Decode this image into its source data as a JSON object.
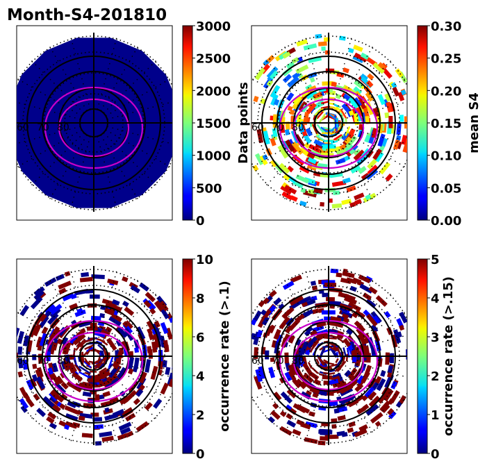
{
  "figure": {
    "title": "Month-S4-201810"
  },
  "chart_data": [
    {
      "type": "polar-map",
      "panel": "top-left",
      "colorbar": {
        "label": "Data points",
        "range": [
          0,
          3000
        ],
        "ticks": [
          "0",
          "500",
          "1000",
          "1500",
          "2000",
          "2500",
          "3000"
        ]
      },
      "lat_labels": [
        "60",
        "70",
        "80"
      ],
      "fill_value": 0,
      "description_values": {
        "uniform_level": 0
      }
    },
    {
      "type": "polar-map",
      "panel": "top-right",
      "colorbar": {
        "label": "mean S4",
        "range": [
          0.0,
          0.3
        ],
        "ticks": [
          "0.00",
          "0.05",
          "0.10",
          "0.15",
          "0.20",
          "0.25",
          "0.30"
        ]
      },
      "lat_labels": [
        "60",
        "70",
        "80"
      ]
    },
    {
      "type": "polar-map",
      "panel": "bottom-left",
      "colorbar": {
        "label": "occurrence rate (>.1)",
        "range": [
          0,
          10
        ],
        "ticks": [
          "0",
          "2",
          "4",
          "6",
          "8",
          "10"
        ]
      },
      "lat_labels": [
        "60",
        "70",
        "80"
      ]
    },
    {
      "type": "polar-map",
      "panel": "bottom-right",
      "colorbar": {
        "label": "occurrence rate (>.15)",
        "range": [
          0,
          5
        ],
        "ticks": [
          "0",
          "1",
          "2",
          "3",
          "4",
          "5"
        ]
      },
      "lat_labels": [
        "60",
        "70",
        "80"
      ]
    }
  ]
}
